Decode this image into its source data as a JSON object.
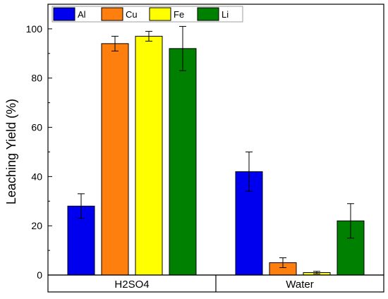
{
  "chart_data": {
    "type": "bar",
    "categories": [
      "H2SO4",
      "Water"
    ],
    "series": [
      {
        "name": "Al",
        "color": "#0000ee",
        "values": [
          28,
          42
        ],
        "errors": [
          5,
          8
        ]
      },
      {
        "name": "Cu",
        "color": "#ff7f0e",
        "values": [
          94,
          5
        ],
        "errors": [
          3,
          2
        ]
      },
      {
        "name": "Fe",
        "color": "#ffff00",
        "values": [
          97,
          1
        ],
        "errors": [
          2,
          0.5
        ]
      },
      {
        "name": "Li",
        "color": "#008000",
        "values": [
          92,
          22
        ],
        "errors": [
          9,
          7
        ]
      }
    ],
    "xlabel": "",
    "ylabel": "Leaching Yield (%)",
    "ylim": [
      0,
      110
    ],
    "yticks": [
      0,
      20,
      40,
      60,
      80,
      100
    ],
    "legend_position": "top-left",
    "grid": false
  }
}
